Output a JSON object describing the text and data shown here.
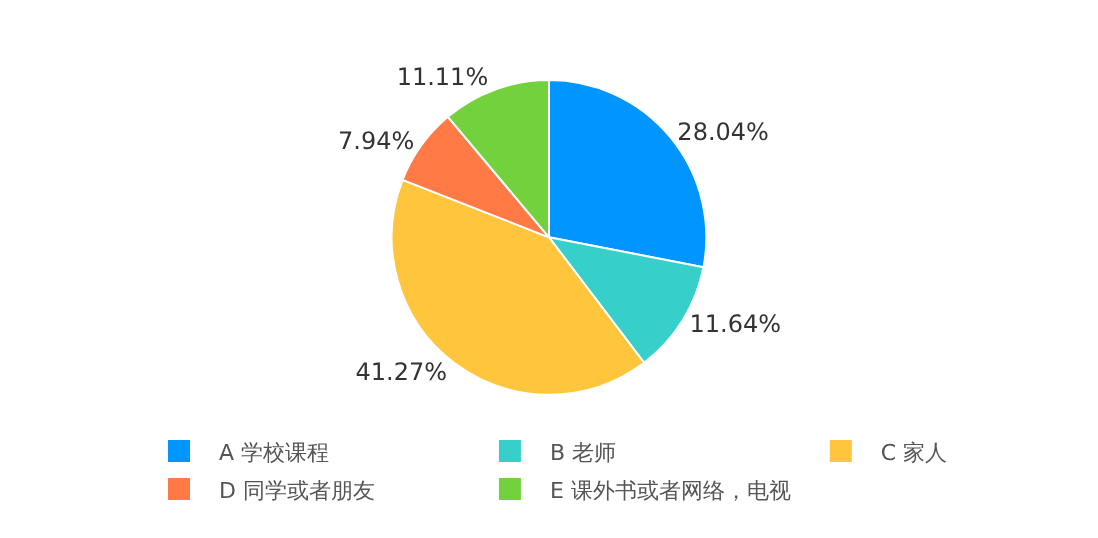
{
  "chart_data": {
    "type": "pie",
    "categories": [
      "A 学校课程",
      "B 老师",
      "C 家人",
      "D 同学或者朋友",
      "E 课外书或者网络，电视"
    ],
    "values": [
      28.04,
      11.64,
      41.27,
      7.94,
      11.11
    ],
    "value_labels": [
      "28.04%",
      "11.64%",
      "41.27%",
      "7.94%",
      "11.11%"
    ],
    "colors": [
      "#0095ff",
      "#36cfc9",
      "#ffc53d",
      "#ff7a45",
      "#73d13d"
    ],
    "legend": "bottom"
  }
}
